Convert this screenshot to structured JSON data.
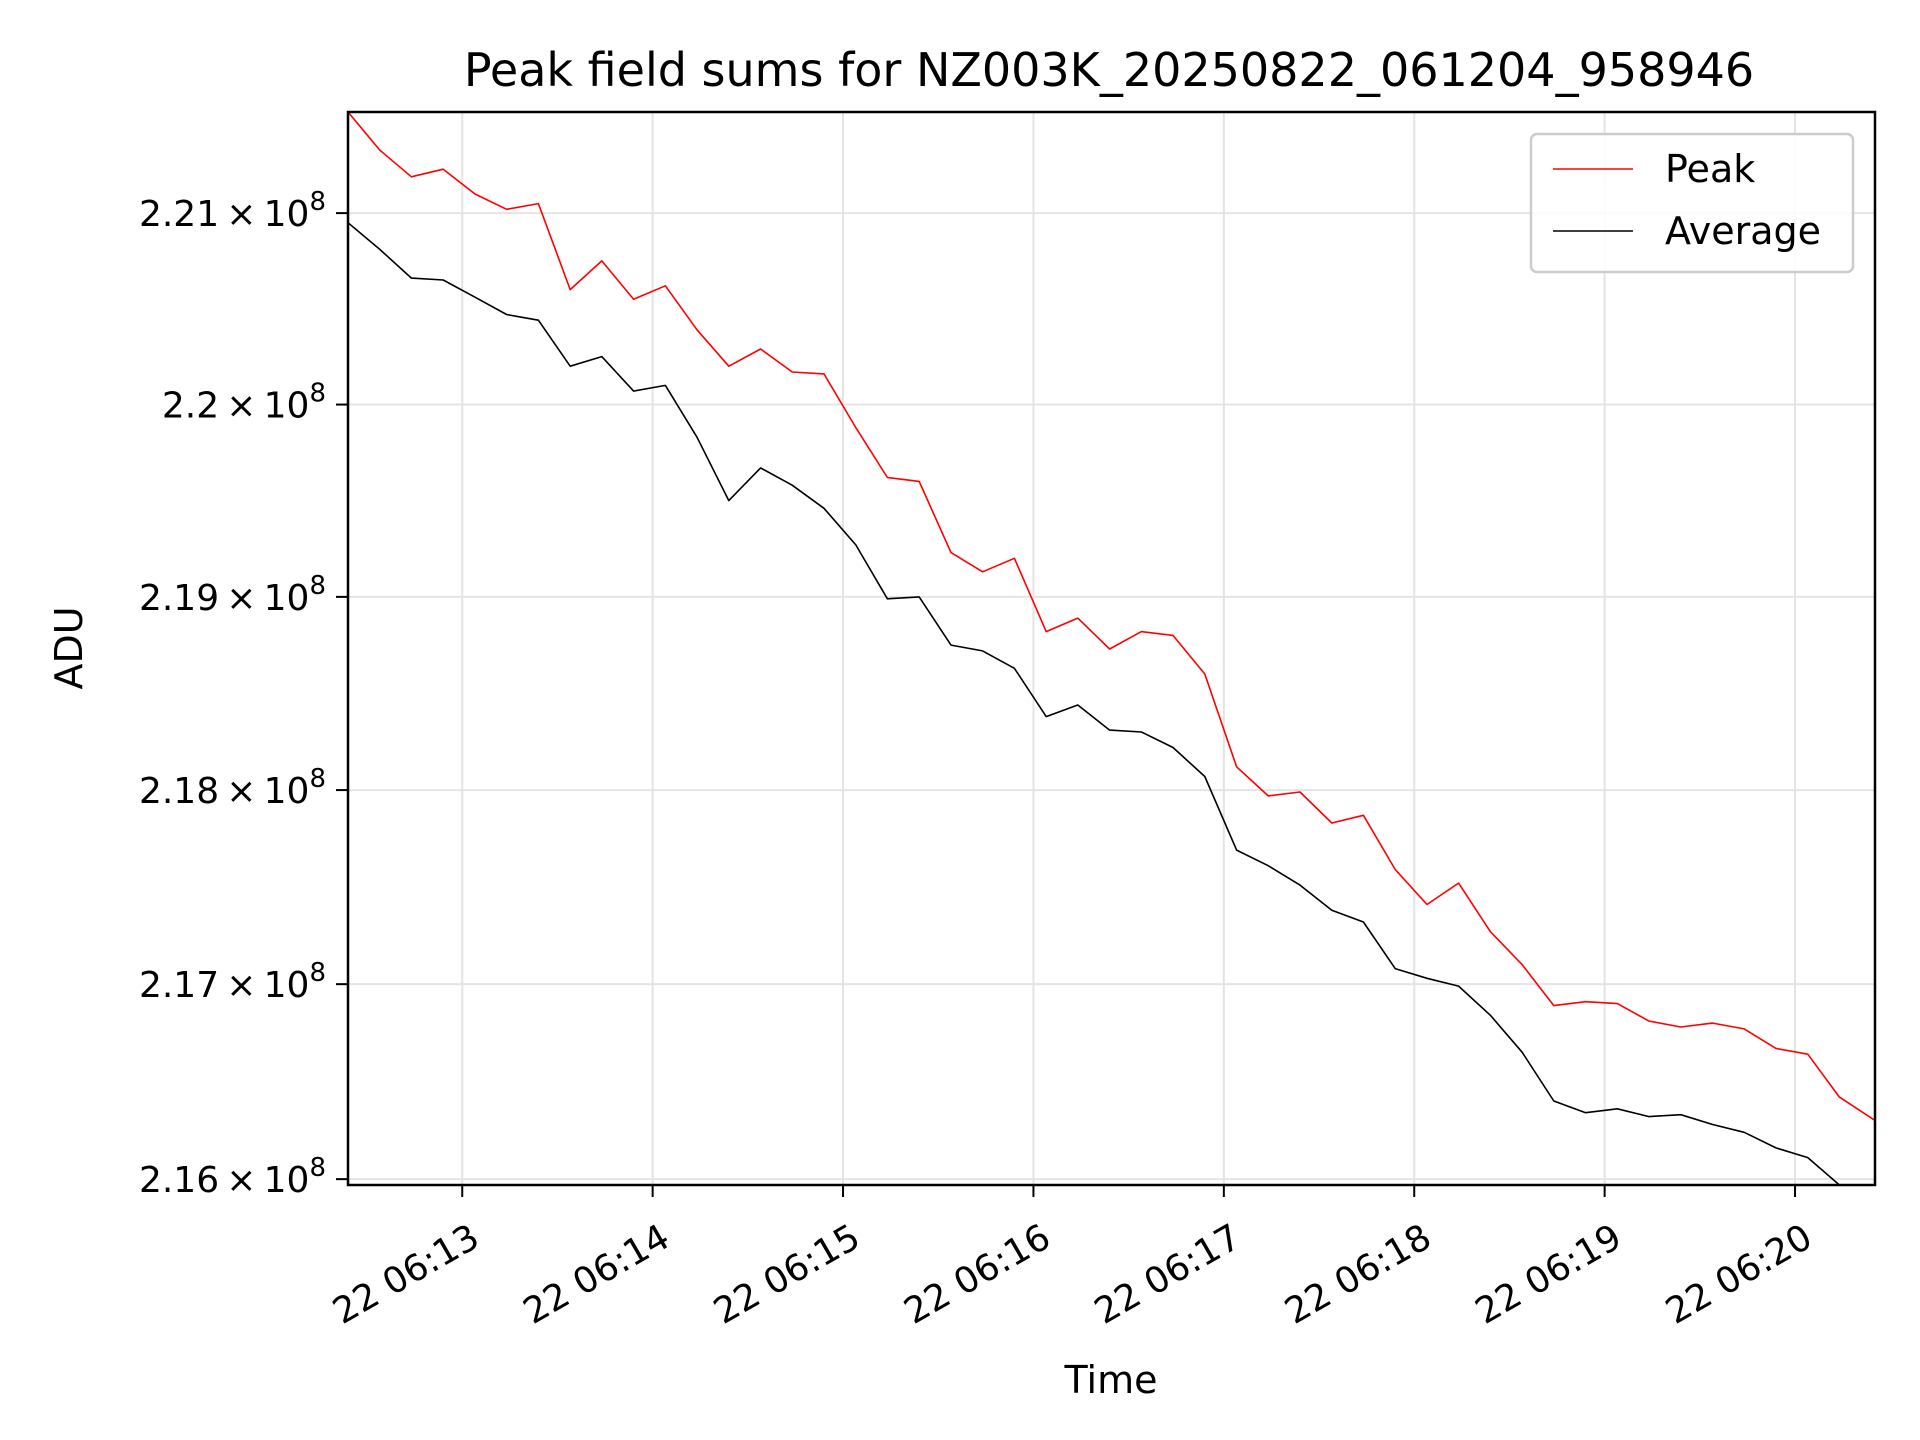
{
  "chart_data": {
    "type": "line",
    "title": "Peak field sums for NZ003K_20250822_061204_958946",
    "xlabel": "Time",
    "ylabel": "ADU",
    "x_tick_labels": [
      "22 06:13",
      "22 06:14",
      "22 06:15",
      "22 06:16",
      "22 06:17",
      "22 06:18",
      "22 06:19",
      "22 06:20"
    ],
    "x_tick_minutes": [
      13,
      14,
      15,
      16,
      17,
      18,
      19,
      20
    ],
    "xlim_minutes": [
      12.4,
      20.42
    ],
    "y_tick_values": [
      216000000.0,
      217000000.0,
      218000000.0,
      219000000.0,
      220000000.0,
      221000000.0
    ],
    "y_tick_mantissas": [
      "2.16",
      "2.17",
      "2.18",
      "2.19",
      "2.2",
      "2.21"
    ],
    "y_tick_exponent": "8",
    "ylim": [
      215970000.0,
      221530000.0
    ],
    "log_scale_y": true,
    "grid": true,
    "legend_position": "upper right",
    "x_minutes": [
      12.4,
      12.567,
      12.733,
      12.9,
      13.067,
      13.233,
      13.4,
      13.567,
      13.733,
      13.9,
      14.067,
      14.233,
      14.4,
      14.567,
      14.733,
      14.9,
      15.067,
      15.233,
      15.4,
      15.567,
      15.733,
      15.9,
      16.067,
      16.233,
      16.4,
      16.567,
      16.733,
      16.9,
      17.067,
      17.233,
      17.4,
      17.567,
      17.733,
      17.9,
      18.067,
      18.233,
      18.4,
      18.567,
      18.733,
      18.9,
      19.067,
      19.233,
      19.4,
      19.567,
      19.733,
      19.9,
      20.067,
      20.233,
      20.42
    ],
    "series": [
      {
        "name": "Peak",
        "color": "#ff0000",
        "values": [
          221530000.0,
          221330000.0,
          221190000.0,
          221230000.0,
          221100000.0,
          221020000.0,
          221050000.0,
          220600000.0,
          220750000.0,
          220550000.0,
          220620000.0,
          220390000.0,
          220200000.0,
          220290000.0,
          220170000.0,
          220160000.0,
          219880000.0,
          219620000.0,
          219600000.0,
          219230000.0,
          219130000.0,
          219200000.0,
          218820000.0,
          218890000.0,
          218730000.0,
          218820000.0,
          218800000.0,
          218600000.0,
          218120000.0,
          217970000.0,
          217990000.0,
          217830000.0,
          217870000.0,
          217590000.0,
          217410000.0,
          217520000.0,
          217270000.0,
          217100000.0,
          216890000.0,
          216910000.0,
          216900000.0,
          216810000.0,
          216780000.0,
          216800000.0,
          216770000.0,
          216670000.0,
          216640000.0,
          216420000.0,
          216300000.0
        ]
      },
      {
        "name": "Average",
        "color": "#000000",
        "values": [
          220950000.0,
          220810000.0,
          220660000.0,
          220650000.0,
          220560000.0,
          220470000.0,
          220440000.0,
          220200000.0,
          220250000.0,
          220070000.0,
          220100000.0,
          219830000.0,
          219500000.0,
          219670000.0,
          219580000.0,
          219460000.0,
          219270000.0,
          218990000.0,
          219000000.0,
          218750000.0,
          218720000.0,
          218630000.0,
          218380000.0,
          218440000.0,
          218310000.0,
          218300000.0,
          218220000.0,
          218070000.0,
          217690000.0,
          217610000.0,
          217510000.0,
          217380000.0,
          217320000.0,
          217080000.0,
          217030000.0,
          216990000.0,
          216840000.0,
          216650000.0,
          216400000.0,
          216340000.0,
          216360000.0,
          216320000.0,
          216330000.0,
          216280000.0,
          216240000.0,
          216160000.0,
          216110000.0,
          215970000.0,
          215910000.0
        ]
      }
    ]
  }
}
